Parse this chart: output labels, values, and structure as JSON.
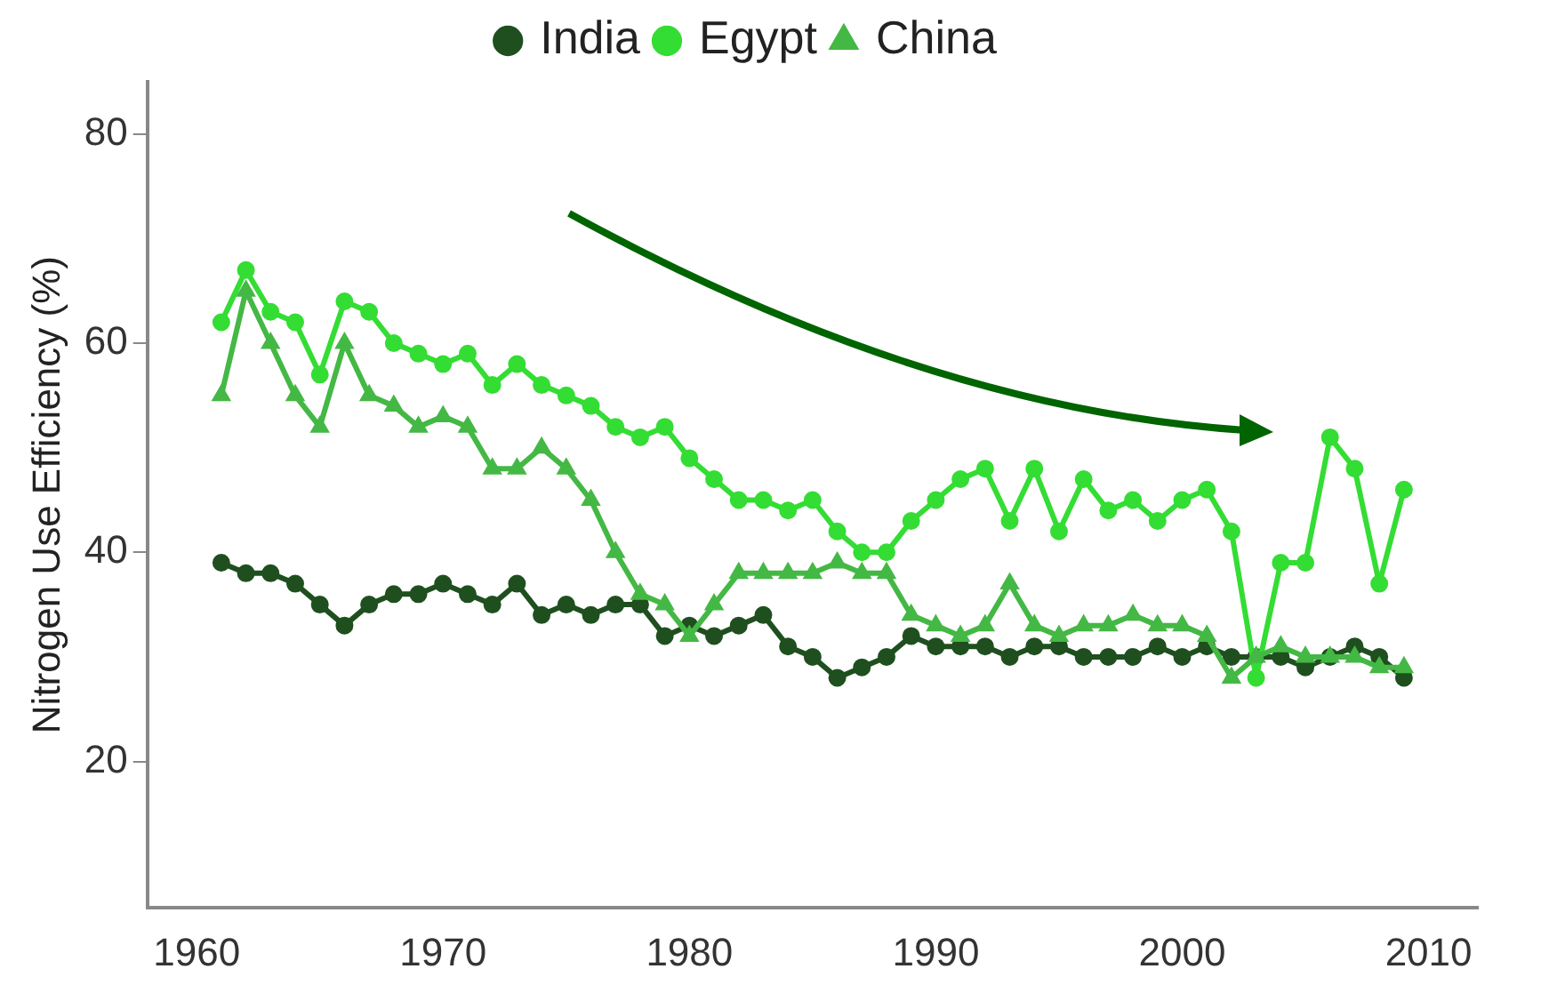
{
  "chart_data": {
    "type": "line",
    "ylabel": "Nitrogen Use Efficiency (%)",
    "legend": "top",
    "grid": false,
    "line_style": "solid",
    "xlim": [
      1958,
      2012
    ],
    "xticks": [
      1960,
      1970,
      1980,
      1990,
      2000,
      2010
    ],
    "ylim": [
      6,
      85
    ],
    "yticks": [
      20,
      40,
      60,
      80
    ],
    "x": [
      1961,
      1962,
      1963,
      1964,
      1965,
      1966,
      1967,
      1968,
      1969,
      1970,
      1971,
      1972,
      1973,
      1974,
      1975,
      1976,
      1977,
      1978,
      1979,
      1980,
      1981,
      1982,
      1983,
      1984,
      1985,
      1986,
      1987,
      1988,
      1989,
      1990,
      1991,
      1992,
      1993,
      1994,
      1995,
      1996,
      1997,
      1998,
      1999,
      2000,
      2001,
      2002,
      2003,
      2004,
      2005,
      2006,
      2007,
      2008,
      2009
    ],
    "series": [
      {
        "name": "India",
        "color": "#1f4f1f",
        "marker": "circle",
        "values": [
          39,
          38,
          38,
          37,
          35,
          33,
          35,
          36,
          36,
          37,
          36,
          35,
          37,
          34,
          35,
          34,
          35,
          35,
          32,
          33,
          32,
          33,
          34,
          31,
          30,
          28,
          29,
          30,
          32,
          31,
          31,
          31,
          30,
          31,
          31,
          30,
          30,
          30,
          31,
          30,
          31,
          30,
          30,
          30,
          29,
          30,
          31,
          30,
          28
        ]
      },
      {
        "name": "Egypt",
        "color": "#33dd33",
        "marker": "circle",
        "values": [
          62,
          67,
          63,
          62,
          57,
          64,
          63,
          60,
          59,
          58,
          59,
          56,
          58,
          56,
          55,
          54,
          52,
          51,
          52,
          49,
          47,
          45,
          45,
          44,
          45,
          42,
          40,
          40,
          43,
          45,
          47,
          48,
          43,
          48,
          42,
          47,
          44,
          45,
          43,
          45,
          46,
          42,
          28,
          39,
          39,
          51,
          48,
          37,
          46
        ]
      },
      {
        "name": "China",
        "color": "#44b844",
        "marker": "triangle",
        "values": [
          55,
          65,
          60,
          55,
          52,
          60,
          55,
          54,
          52,
          53,
          52,
          48,
          48,
          50,
          48,
          45,
          40,
          36,
          35,
          32,
          35,
          38,
          38,
          38,
          38,
          39,
          38,
          38,
          34,
          33,
          32,
          33,
          37,
          33,
          32,
          33,
          33,
          34,
          33,
          33,
          32,
          28,
          30,
          31,
          30,
          30,
          30,
          29,
          29
        ]
      }
    ]
  }
}
